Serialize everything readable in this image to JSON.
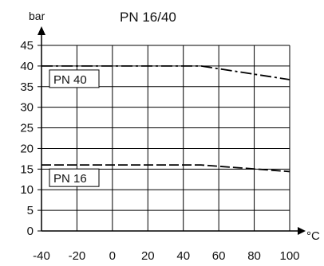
{
  "chart_data": {
    "type": "line",
    "title": "PN 16/40",
    "xlabel": "°C",
    "ylabel": "bar",
    "x_ticks": [
      -40,
      -20,
      0,
      20,
      40,
      60,
      80,
      100
    ],
    "y_ticks": [
      0,
      5,
      10,
      15,
      20,
      25,
      30,
      35,
      40,
      45
    ],
    "xlim": [
      -40,
      100
    ],
    "ylim": [
      0,
      45
    ],
    "grid": true,
    "series": [
      {
        "name": "PN 40",
        "line_style": "dash-dot",
        "x": [
          -40,
          50,
          100
        ],
        "y": [
          40,
          40,
          36.7
        ]
      },
      {
        "name": "PN 16",
        "line_style": "dashed",
        "x": [
          -40,
          50,
          100
        ],
        "y": [
          16,
          16,
          14.4
        ]
      }
    ]
  },
  "colors": {
    "line": "#000000",
    "grid": "#000000"
  }
}
